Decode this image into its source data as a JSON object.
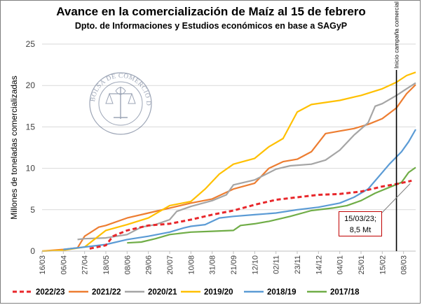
{
  "chart_data": {
    "type": "line",
    "title": "Avance en la comercialización de Maíz al 15 de febrero",
    "subtitle": "Dpto. de Informaciones y Estudios económicos en base a SAGyP",
    "ylabel": "Millones de toneladas comercializadas",
    "xlabel": "",
    "ylim": [
      0,
      25
    ],
    "yticks": [
      0,
      5,
      10,
      15,
      20,
      25
    ],
    "x_tick_labels": [
      "16/03",
      "06/04",
      "27/04",
      "18/05",
      "08/06",
      "29/06",
      "20/07",
      "10/08",
      "31/08",
      "21/09",
      "12/10",
      "02/11",
      "23/11",
      "14/12",
      "04/01",
      "25/01",
      "15/02",
      "08/03"
    ],
    "x_tick_days": [
      0,
      21,
      42,
      63,
      84,
      105,
      126,
      147,
      168,
      189,
      210,
      231,
      252,
      273,
      294,
      315,
      336,
      357
    ],
    "xlim_days": [
      0,
      369
    ],
    "grid": "horizontal",
    "legend_position": "bottom",
    "vertical_line": {
      "x_day": 350,
      "label": "Inicio campaña comercial"
    },
    "annotation": {
      "line1": "15/03/23;",
      "line2": "8,5 Mt",
      "x_day": 365,
      "y": 8.5
    },
    "watermark_text": "BOLSA DE COMERCIO DE ROSARIO",
    "series": [
      {
        "name": "2022/23",
        "color": "#e8272b",
        "dash": true,
        "points": [
          [
            47,
            0.3
          ],
          [
            63,
            0.7
          ],
          [
            70,
            1.8
          ],
          [
            84,
            2.5
          ],
          [
            105,
            3.1
          ],
          [
            126,
            3.3
          ],
          [
            147,
            3.8
          ],
          [
            168,
            4.4
          ],
          [
            189,
            4.9
          ],
          [
            210,
            5.6
          ],
          [
            231,
            6.2
          ],
          [
            252,
            6.5
          ],
          [
            273,
            6.8
          ],
          [
            294,
            6.9
          ],
          [
            315,
            7.2
          ],
          [
            336,
            7.8
          ],
          [
            350,
            8.1
          ],
          [
            365,
            8.5
          ]
        ]
      },
      {
        "name": "2021/22",
        "color": "#ed7d31",
        "dash": false,
        "points": [
          [
            0,
            0
          ],
          [
            21,
            0.2
          ],
          [
            35,
            0.4
          ],
          [
            42,
            1.8
          ],
          [
            56,
            2.9
          ],
          [
            63,
            3.1
          ],
          [
            84,
            4.0
          ],
          [
            105,
            4.6
          ],
          [
            126,
            5.2
          ],
          [
            147,
            5.8
          ],
          [
            168,
            6.3
          ],
          [
            189,
            7.5
          ],
          [
            210,
            8.2
          ],
          [
            224,
            10.0
          ],
          [
            238,
            10.8
          ],
          [
            252,
            11.1
          ],
          [
            266,
            12.0
          ],
          [
            280,
            14.2
          ],
          [
            294,
            14.5
          ],
          [
            308,
            14.8
          ],
          [
            322,
            15.3
          ],
          [
            336,
            16.0
          ],
          [
            350,
            17.3
          ],
          [
            360,
            19.0
          ],
          [
            369,
            20.1
          ]
        ]
      },
      {
        "name": "2020/21",
        "color": "#a5a5a5",
        "dash": false,
        "points": [
          [
            35,
            1.4
          ],
          [
            42,
            1.5
          ],
          [
            63,
            1.6
          ],
          [
            84,
            2.0
          ],
          [
            98,
            2.9
          ],
          [
            112,
            3.2
          ],
          [
            126,
            3.8
          ],
          [
            133,
            4.8
          ],
          [
            147,
            5.4
          ],
          [
            168,
            6.1
          ],
          [
            182,
            6.8
          ],
          [
            189,
            8.0
          ],
          [
            210,
            8.6
          ],
          [
            231,
            9.9
          ],
          [
            245,
            10.3
          ],
          [
            266,
            10.5
          ],
          [
            280,
            11.0
          ],
          [
            294,
            12.2
          ],
          [
            308,
            14.0
          ],
          [
            322,
            15.5
          ],
          [
            329,
            17.5
          ],
          [
            336,
            17.8
          ],
          [
            350,
            18.8
          ],
          [
            360,
            19.6
          ],
          [
            369,
            20.3
          ]
        ]
      },
      {
        "name": "2019/20",
        "color": "#ffc000",
        "dash": false,
        "points": [
          [
            0,
            0
          ],
          [
            21,
            0.1
          ],
          [
            42,
            0.5
          ],
          [
            63,
            2.5
          ],
          [
            84,
            3.2
          ],
          [
            105,
            4.0
          ],
          [
            126,
            5.5
          ],
          [
            147,
            6.0
          ],
          [
            161,
            7.5
          ],
          [
            175,
            9.3
          ],
          [
            189,
            10.5
          ],
          [
            210,
            11.2
          ],
          [
            224,
            12.6
          ],
          [
            238,
            13.6
          ],
          [
            252,
            16.8
          ],
          [
            266,
            17.7
          ],
          [
            294,
            18.2
          ],
          [
            315,
            18.8
          ],
          [
            336,
            19.6
          ],
          [
            350,
            20.4
          ],
          [
            360,
            21.2
          ],
          [
            369,
            21.6
          ]
        ]
      },
      {
        "name": "2018/19",
        "color": "#5b9bd5",
        "dash": false,
        "points": [
          [
            21,
            0.2
          ],
          [
            42,
            0.5
          ],
          [
            63,
            0.8
          ],
          [
            84,
            1.4
          ],
          [
            105,
            1.8
          ],
          [
            126,
            2.3
          ],
          [
            140,
            2.8
          ],
          [
            147,
            3.0
          ],
          [
            161,
            3.2
          ],
          [
            175,
            4.0
          ],
          [
            189,
            4.2
          ],
          [
            210,
            4.4
          ],
          [
            231,
            4.6
          ],
          [
            252,
            5.0
          ],
          [
            273,
            5.3
          ],
          [
            294,
            5.8
          ],
          [
            308,
            6.5
          ],
          [
            322,
            7.5
          ],
          [
            329,
            8.5
          ],
          [
            343,
            10.5
          ],
          [
            355,
            12.0
          ],
          [
            362,
            13.2
          ],
          [
            369,
            14.7
          ]
        ]
      },
      {
        "name": "2017/18",
        "color": "#70ad47",
        "dash": false,
        "points": [
          [
            84,
            1.0
          ],
          [
            98,
            1.1
          ],
          [
            112,
            1.5
          ],
          [
            126,
            2.0
          ],
          [
            147,
            2.3
          ],
          [
            168,
            2.4
          ],
          [
            189,
            2.5
          ],
          [
            196,
            3.1
          ],
          [
            210,
            3.3
          ],
          [
            224,
            3.6
          ],
          [
            245,
            4.2
          ],
          [
            266,
            4.9
          ],
          [
            287,
            5.2
          ],
          [
            301,
            5.5
          ],
          [
            315,
            6.1
          ],
          [
            329,
            7.0
          ],
          [
            343,
            7.7
          ],
          [
            355,
            8.3
          ],
          [
            362,
            9.5
          ],
          [
            369,
            10.1
          ]
        ]
      }
    ]
  }
}
